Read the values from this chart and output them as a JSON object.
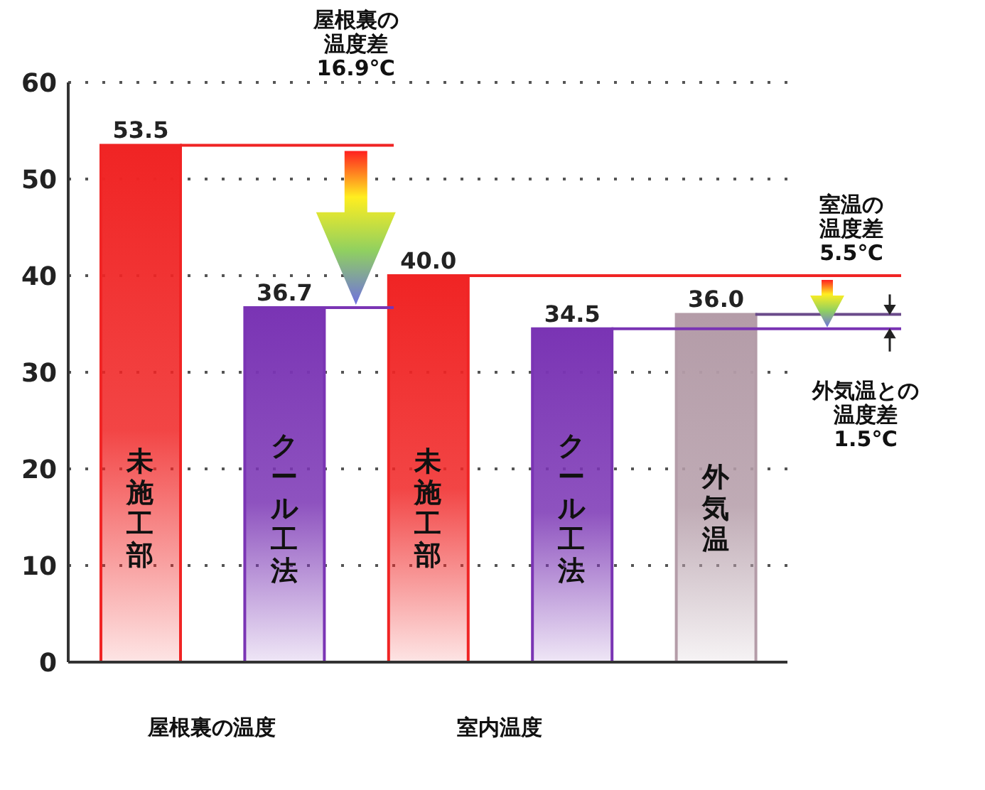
{
  "chart_data": {
    "type": "bar",
    "categories": [
      "未施工部",
      "クール工法",
      "未施工部",
      "クール工法",
      "外気温"
    ],
    "values": [
      53.5,
      36.7,
      40.0,
      34.5,
      36.0
    ],
    "colors": [
      "#f02424",
      "#7a34b4",
      "#f02424",
      "#7a34b4",
      "#b49ca8"
    ],
    "value_labels": [
      "53.5",
      "36.7",
      "40.0",
      "34.5",
      "36.0"
    ],
    "ylim": [
      0,
      60
    ],
    "yticks": [
      0,
      10,
      20,
      30,
      40,
      50,
      60
    ],
    "grid": "y",
    "annotations": [
      "屋根裏の温度差16.9℃",
      "室温の温度差5.5℃",
      "外気温との温度差1.5℃",
      "屋根裏の温度",
      "室内温度"
    ]
  }
}
